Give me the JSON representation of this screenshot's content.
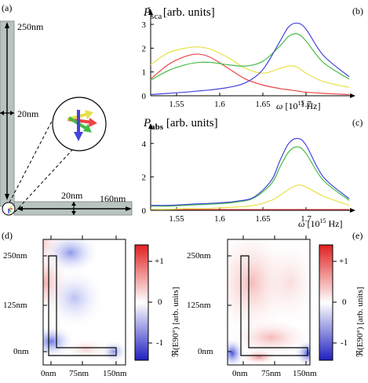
{
  "panel_labels": {
    "a": "(a)",
    "b": "(b)",
    "c": "(c)",
    "d": "(d)",
    "e": "(e)"
  },
  "panel_a": {
    "dim_vertical_length": "250nm",
    "dim_vertical_width": "20nm",
    "dim_horizontal_width": "20nm",
    "dim_horizontal_length": "160nm"
  },
  "panel_b": {
    "ylabel_prefix": "P",
    "ylabel_sub": "sca",
    "ylabel_sup": "s",
    "ylabel_unit": "[arb. units]",
    "xlabel_symbol": "ω",
    "xlabel_unit": "[10",
    "xlabel_exp": "15",
    "xlabel_hz": "Hz]"
  },
  "panel_c": {
    "ylabel_prefix": "P",
    "ylabel_sub": "abs",
    "ylabel_unit": "[arb. units]",
    "xlabel_symbol": "ω",
    "xlabel_unit": "[10",
    "xlabel_exp": "15",
    "xlabel_hz": "Hz]"
  },
  "field_maps": {
    "y_ticks": [
      "250nm",
      "125nm",
      "0nm"
    ],
    "x_ticks": [
      "0nm",
      "75nm",
      "150nm"
    ],
    "colorbar_ticks": [
      "+1",
      "0",
      "-1"
    ],
    "colorbar_label": "ℜ(E90°) [arb. units]"
  },
  "chart_data": [
    {
      "type": "line",
      "panel": "b",
      "xlim": [
        1.52,
        1.75
      ],
      "ylim": [
        0,
        3.2
      ],
      "x_ticks": [
        "1.55",
        "1.6",
        "1.65",
        "1.7"
      ],
      "y_ticks": [
        "0",
        "1",
        "2",
        "3"
      ],
      "x": [
        1.52,
        1.54,
        1.56,
        1.575,
        1.59,
        1.61,
        1.63,
        1.65,
        1.67,
        1.68,
        1.69,
        1.7,
        1.72,
        1.75
      ],
      "series": [
        {
          "color": "#e8e04a",
          "values": [
            1.3,
            1.8,
            2.0,
            2.05,
            1.95,
            1.6,
            1.15,
            0.95,
            1.15,
            1.25,
            1.2,
            0.95,
            0.6,
            0.35
          ]
        },
        {
          "color": "#ee4444",
          "values": [
            0.7,
            1.3,
            1.65,
            1.75,
            1.6,
            1.15,
            0.7,
            0.45,
            0.3,
            0.25,
            0.2,
            0.15,
            0.1,
            0.05
          ]
        },
        {
          "color": "#44bb44",
          "values": [
            0.65,
            1.05,
            1.3,
            1.4,
            1.4,
            1.3,
            1.25,
            1.45,
            2.1,
            2.5,
            2.6,
            2.3,
            1.4,
            0.7
          ]
        },
        {
          "color": "#4444dd",
          "values": [
            0.05,
            0.1,
            0.15,
            0.2,
            0.25,
            0.35,
            0.55,
            1.1,
            2.3,
            2.9,
            3.05,
            2.8,
            1.7,
            0.8
          ]
        }
      ]
    },
    {
      "type": "line",
      "panel": "c",
      "xlim": [
        1.52,
        1.75
      ],
      "ylim": [
        0,
        4.6
      ],
      "x_ticks": [
        "1.55",
        "1.6",
        "1.65",
        "1.7"
      ],
      "y_ticks": [
        "0",
        "2",
        "4"
      ],
      "x": [
        1.52,
        1.54,
        1.56,
        1.58,
        1.6,
        1.62,
        1.64,
        1.66,
        1.67,
        1.68,
        1.69,
        1.7,
        1.72,
        1.75
      ],
      "series": [
        {
          "color": "#ee4444",
          "values": [
            0.05,
            0.05,
            0.05,
            0.05,
            0.05,
            0.05,
            0.05,
            0.05,
            0.05,
            0.05,
            0.05,
            0.05,
            0.05,
            0.05
          ]
        },
        {
          "color": "#e8e04a",
          "values": [
            0.05,
            0.05,
            0.1,
            0.1,
            0.15,
            0.2,
            0.3,
            0.6,
            0.9,
            1.25,
            1.5,
            1.4,
            0.85,
            0.3
          ]
        },
        {
          "color": "#44bb44",
          "values": [
            0.25,
            0.25,
            0.3,
            0.35,
            0.4,
            0.5,
            0.75,
            1.6,
            2.6,
            3.5,
            3.8,
            3.4,
            1.8,
            0.6
          ]
        },
        {
          "color": "#4444dd",
          "values": [
            0.3,
            0.3,
            0.35,
            0.4,
            0.45,
            0.55,
            0.8,
            1.8,
            3.0,
            4.0,
            4.3,
            3.9,
            2.0,
            0.7
          ]
        }
      ]
    }
  ]
}
